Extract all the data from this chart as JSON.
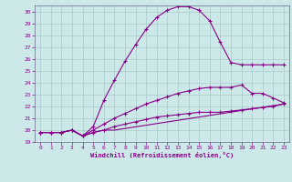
{
  "xlabel": "Windchill (Refroidissement éolien,°C)",
  "background_color": "#cce8e8",
  "grid_color": "#aacccc",
  "line_color": "#880088",
  "xlim": [
    -0.5,
    23.5
  ],
  "ylim": [
    19,
    30.5
  ],
  "yticks": [
    19,
    20,
    21,
    22,
    23,
    24,
    25,
    26,
    27,
    28,
    29,
    30
  ],
  "xticks": [
    0,
    1,
    2,
    3,
    4,
    5,
    6,
    7,
    8,
    9,
    10,
    11,
    12,
    13,
    14,
    15,
    16,
    17,
    18,
    19,
    20,
    21,
    22,
    23
  ],
  "curve1_x": [
    0,
    1,
    2,
    3,
    4,
    5,
    6,
    7,
    8,
    9,
    10,
    11,
    12,
    13,
    14,
    15,
    16,
    17,
    18,
    19,
    20,
    21,
    22,
    23
  ],
  "curve1_y": [
    19.8,
    19.8,
    19.8,
    20.0,
    19.5,
    20.3,
    22.5,
    24.2,
    25.8,
    27.2,
    28.5,
    29.5,
    30.1,
    30.4,
    30.4,
    30.1,
    29.2,
    27.4,
    25.7,
    25.5,
    25.5,
    25.5,
    25.5,
    25.5
  ],
  "curve2_x": [
    0,
    1,
    2,
    3,
    4,
    5,
    6,
    7,
    8,
    9,
    10,
    11,
    12,
    13,
    14,
    15,
    16,
    17,
    18,
    19,
    20,
    21,
    22,
    23
  ],
  "curve2_y": [
    19.8,
    19.8,
    19.8,
    20.0,
    19.5,
    20.0,
    20.5,
    21.0,
    21.4,
    21.8,
    22.2,
    22.5,
    22.8,
    23.1,
    23.3,
    23.5,
    23.6,
    23.6,
    23.6,
    23.8,
    23.1,
    23.1,
    22.7,
    22.3
  ],
  "curve3_x": [
    0,
    1,
    2,
    3,
    4,
    5,
    6,
    7,
    8,
    9,
    10,
    11,
    12,
    13,
    14,
    15,
    16,
    17,
    18,
    19,
    20,
    21,
    22,
    23
  ],
  "curve3_y": [
    19.8,
    19.8,
    19.8,
    20.0,
    19.5,
    19.8,
    20.0,
    20.3,
    20.5,
    20.7,
    20.9,
    21.1,
    21.2,
    21.3,
    21.4,
    21.5,
    21.5,
    21.5,
    21.6,
    21.7,
    21.8,
    21.9,
    22.0,
    22.2
  ],
  "curve4_x": [
    0,
    1,
    2,
    3,
    4,
    5,
    6,
    7,
    23
  ],
  "curve4_y": [
    19.8,
    19.8,
    19.8,
    20.0,
    19.5,
    19.8,
    20.0,
    20.0,
    22.2
  ]
}
